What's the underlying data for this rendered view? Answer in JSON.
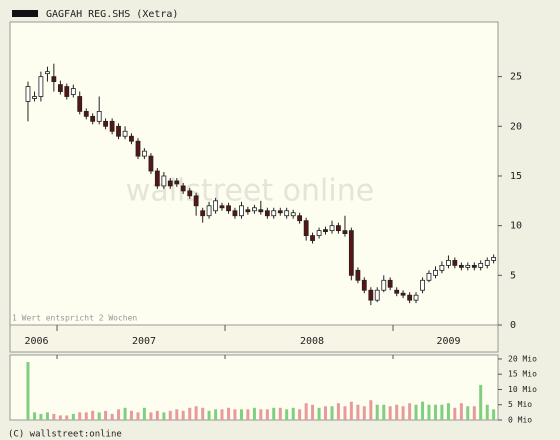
{
  "chart_data": {
    "type": "candlestick",
    "series": [
      {
        "name": "GAGFAH REG.SHS (Xetra)",
        "up_color": "#ffffff",
        "down_color": "#5a1414",
        "x": [
          2006.827,
          2006.866,
          2006.904,
          2006.943,
          2006.981,
          2007.02,
          2007.058,
          2007.097,
          2007.135,
          2007.174,
          2007.212,
          2007.251,
          2007.289,
          2007.328,
          2007.366,
          2007.405,
          2007.443,
          2007.482,
          2007.52,
          2007.559,
          2007.597,
          2007.636,
          2007.674,
          2007.713,
          2007.751,
          2007.79,
          2007.828,
          2007.867,
          2007.905,
          2007.944,
          2007.982,
          2008.021,
          2008.059,
          2008.098,
          2008.136,
          2008.175,
          2008.213,
          2008.252,
          2008.29,
          2008.329,
          2008.367,
          2008.406,
          2008.444,
          2008.483,
          2008.521,
          2008.56,
          2008.598,
          2008.637,
          2008.675,
          2008.714,
          2008.752,
          2008.791,
          2008.829,
          2008.868,
          2008.906,
          2008.945,
          2008.983,
          2009.022,
          2009.06,
          2009.099,
          2009.137,
          2009.176,
          2009.214,
          2009.253,
          2009.291,
          2009.33,
          2009.368,
          2009.407,
          2009.445,
          2009.484,
          2009.522,
          2009.561,
          2009.599
        ],
        "open": [
          22.5,
          22.8,
          23,
          25.3,
          25,
          24.2,
          24,
          23.2,
          23,
          21.5,
          21,
          20.5,
          20.5,
          20.5,
          20,
          19,
          19,
          18.5,
          17,
          17,
          15.5,
          14,
          14.5,
          14.5,
          14,
          13.5,
          13,
          11.5,
          11,
          11.5,
          12,
          12,
          11.5,
          11,
          11.6,
          11.5,
          11.6,
          11.5,
          11,
          11.5,
          11,
          11,
          11,
          10.5,
          9,
          9,
          9.6,
          9.5,
          10,
          9.5,
          9.5,
          5.5,
          4.5,
          3.5,
          2.5,
          3.5,
          4.5,
          3.5,
          3.2,
          3,
          2.5,
          3.5,
          4.5,
          5,
          5.5,
          6,
          6.5,
          6,
          5.8,
          6,
          5.8,
          6,
          6.5
        ],
        "high": [
          24.5,
          23.5,
          25.5,
          26,
          26.3,
          24.6,
          24.3,
          24.2,
          23.5,
          21.8,
          21.3,
          23,
          20.8,
          20.8,
          20.3,
          20,
          19.3,
          18.8,
          17.8,
          17.3,
          15.8,
          15.4,
          14.8,
          14.8,
          14.3,
          13.8,
          13.3,
          11.8,
          12.4,
          12.8,
          12.3,
          12.3,
          11.8,
          12.4,
          11.9,
          12.1,
          12.5,
          11.8,
          11.8,
          11.8,
          11.8,
          11.6,
          11.3,
          10.8,
          9.3,
          9.8,
          9.9,
          10.5,
          10.3,
          11,
          9.8,
          5.8,
          4.8,
          3.8,
          3.8,
          5,
          4.8,
          3.8,
          3.5,
          3.3,
          3.3,
          4.8,
          5.5,
          5.9,
          6.4,
          7,
          6.8,
          6.3,
          6.3,
          6.3,
          6.5,
          6.8,
          7.1
        ],
        "low": [
          20.5,
          22.5,
          22.5,
          24.5,
          23.5,
          23.2,
          22.7,
          22.9,
          21.2,
          20.7,
          20.2,
          20.2,
          19.7,
          19.2,
          18.7,
          18.7,
          18.2,
          16.7,
          16.7,
          15.2,
          13.7,
          13.7,
          13.7,
          13.9,
          13.2,
          12.7,
          11,
          10.3,
          10.7,
          11.2,
          11.5,
          11.2,
          10.7,
          10.7,
          11.1,
          11.2,
          11.1,
          10.7,
          10.7,
          11,
          10.7,
          10.7,
          10.2,
          8.5,
          8.2,
          8.7,
          9.1,
          9.2,
          9.2,
          8.9,
          4.5,
          4.2,
          3.2,
          2,
          2.3,
          3.3,
          3.5,
          2.9,
          2.7,
          2.2,
          2.2,
          3.2,
          4.3,
          4.7,
          5.2,
          5.7,
          5.7,
          5.5,
          5.5,
          5.5,
          5.5,
          5.7,
          6.2
        ],
        "close": [
          24,
          23,
          25,
          25.5,
          24.5,
          23.5,
          23,
          23.8,
          21.5,
          21,
          20.5,
          21.5,
          20,
          19.5,
          19,
          19.5,
          18.5,
          17,
          17.5,
          15.5,
          14,
          15,
          14,
          14.2,
          13.5,
          13,
          12,
          11,
          12,
          12.5,
          11.8,
          11.5,
          11,
          12,
          11.4,
          11.8,
          11.4,
          11,
          11.5,
          11.3,
          11.5,
          11.3,
          10.5,
          9,
          8.5,
          9.5,
          9.4,
          10,
          9.5,
          9.2,
          5,
          4.5,
          3.5,
          2.5,
          3.5,
          4.5,
          3.8,
          3.2,
          3,
          2.5,
          3,
          4.5,
          5.2,
          5.5,
          6,
          6.5,
          6,
          5.8,
          6,
          5.8,
          6.2,
          6.5,
          6.8
        ]
      }
    ],
    "volume": {
      "up_color": "#7fcf7f",
      "down_color": "#e89a9a",
      "values": [
        19,
        2.5,
        2,
        2.5,
        2,
        1.5,
        1.5,
        2,
        2.5,
        2.5,
        3,
        2.5,
        3,
        2,
        3.5,
        4,
        3,
        2.5,
        4,
        2.5,
        3,
        2.5,
        3,
        3.5,
        3,
        4,
        4.5,
        4,
        3,
        3.5,
        3.5,
        4,
        3.5,
        3.5,
        3.5,
        4,
        3.5,
        3.5,
        4,
        4,
        3.5,
        4,
        3.5,
        5.5,
        5,
        4,
        4.5,
        4.5,
        5.5,
        4.5,
        6,
        5,
        4.5,
        6.5,
        5,
        5,
        4.5,
        5,
        4.5,
        5.5,
        5,
        6,
        5,
        5,
        5,
        5.5,
        4,
        5.5,
        4.5,
        4.5,
        11.5,
        5,
        3.5
      ],
      "ylim": [
        0,
        21.3
      ],
      "yticks": [
        {
          "value": 0,
          "label": "0 Mio"
        },
        {
          "value": 5,
          "label": "5 Mio"
        },
        {
          "value": 10,
          "label": "10 Mio"
        },
        {
          "value": 15,
          "label": "15 Mio"
        },
        {
          "value": 20,
          "label": "20 Mio"
        }
      ]
    },
    "xlim": [
      2006.72,
      2009.625
    ],
    "xticks": [
      2006,
      2007,
      2008,
      2009
    ],
    "ylim": [
      0,
      30.5
    ],
    "yticks": [
      0,
      5,
      10,
      15,
      20,
      25
    ],
    "note": "1 Wert entspricht 2 Wochen",
    "watermark": "wallstreet online",
    "footer": "(C) wallstreet:online"
  }
}
